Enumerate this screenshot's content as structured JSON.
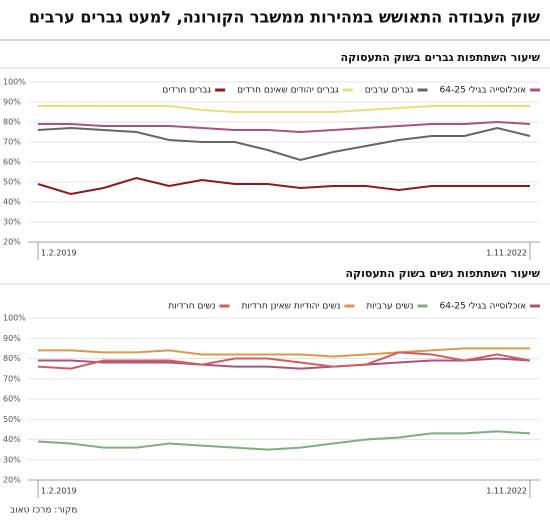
{
  "title": "שוק העבודה התאושש במהירות ממשבר הקורונה, למעט גברים ערבים",
  "source": "מקור: מרכז טאוב",
  "chart_data": [
    {
      "type": "line",
      "title": "שיעור השתתפות גברים בשוק התעסוקה",
      "x": [
        "1.2.2019",
        null,
        null,
        null,
        null,
        null,
        null,
        null,
        null,
        null,
        null,
        null,
        null,
        null,
        null,
        "1.11.2022"
      ],
      "series": [
        {
          "name": "אוכלוסייה בגילי 64-25",
          "color": "#a8557e",
          "values": [
            79,
            79,
            78,
            78,
            78,
            77,
            76,
            76,
            75,
            76,
            77,
            78,
            79,
            79,
            80,
            79
          ]
        },
        {
          "name": "גברים ערבים",
          "color": "#666666",
          "values": [
            76,
            77,
            76,
            75,
            71,
            70,
            70,
            66,
            61,
            65,
            68,
            71,
            73,
            73,
            77,
            73
          ]
        },
        {
          "name": "גברים יהודים שאינם חרדים",
          "color": "#e6e07a",
          "values": [
            88,
            88,
            88,
            88,
            88,
            86,
            85,
            85,
            85,
            85,
            86,
            87,
            88,
            88,
            88,
            88
          ]
        },
        {
          "name": "גברים חרדים",
          "color": "#8b1a1f",
          "values": [
            49,
            44,
            47,
            52,
            48,
            51,
            49,
            49,
            47,
            48,
            48,
            46,
            48,
            48,
            48,
            48
          ]
        }
      ],
      "ylim": [
        20,
        100
      ],
      "yticks": [
        {
          "value": 20,
          "label": "20%"
        },
        {
          "value": 30,
          "label": "30%"
        },
        {
          "value": 40,
          "label": "40%"
        },
        {
          "value": 50,
          "label": "50%"
        },
        {
          "value": 60,
          "label": "60%"
        },
        {
          "value": 70,
          "label": "70%"
        },
        {
          "value": 80,
          "label": "80%"
        },
        {
          "value": 90,
          "label": "90%"
        },
        {
          "value": 100,
          "label": "100%"
        }
      ],
      "grid": true
    },
    {
      "type": "line",
      "title": "שיעור השתתפות נשים בשוק התעסוקה",
      "x": [
        "1.2.2019",
        null,
        null,
        null,
        null,
        null,
        null,
        null,
        null,
        null,
        null,
        null,
        null,
        null,
        null,
        "1.11.2022"
      ],
      "series": [
        {
          "name": "אוכלוסייה בגילי 64-25",
          "color": "#a8557e",
          "values": [
            79,
            79,
            78,
            78,
            78,
            77,
            76,
            76,
            75,
            76,
            77,
            78,
            79,
            79,
            80,
            79
          ]
        },
        {
          "name": "נשים ערביות",
          "color": "#7fae7f",
          "values": [
            39,
            38,
            36,
            36,
            38,
            37,
            36,
            35,
            36,
            38,
            40,
            41,
            43,
            43,
            44,
            43
          ]
        },
        {
          "name": "נשים יהודיות שאינן חרדיות",
          "color": "#d99a4e",
          "values": [
            84,
            84,
            83,
            83,
            84,
            82,
            82,
            82,
            82,
            81,
            82,
            83,
            84,
            85,
            85,
            85
          ]
        },
        {
          "name": "נשים חרדיות",
          "color": "#cf5f5f",
          "values": [
            76,
            75,
            79,
            79,
            79,
            77,
            80,
            80,
            78,
            76,
            77,
            83,
            82,
            79,
            82,
            79
          ]
        }
      ],
      "ylim": [
        20,
        100
      ],
      "yticks": [
        {
          "value": 20,
          "label": "20%"
        },
        {
          "value": 30,
          "label": "30%"
        },
        {
          "value": 40,
          "label": "40%"
        },
        {
          "value": 50,
          "label": "50%"
        },
        {
          "value": 60,
          "label": "60%"
        },
        {
          "value": 70,
          "label": "70%"
        },
        {
          "value": 80,
          "label": "80%"
        },
        {
          "value": 90,
          "label": "90%"
        },
        {
          "value": 100,
          "label": "100%"
        }
      ],
      "grid": true
    }
  ]
}
